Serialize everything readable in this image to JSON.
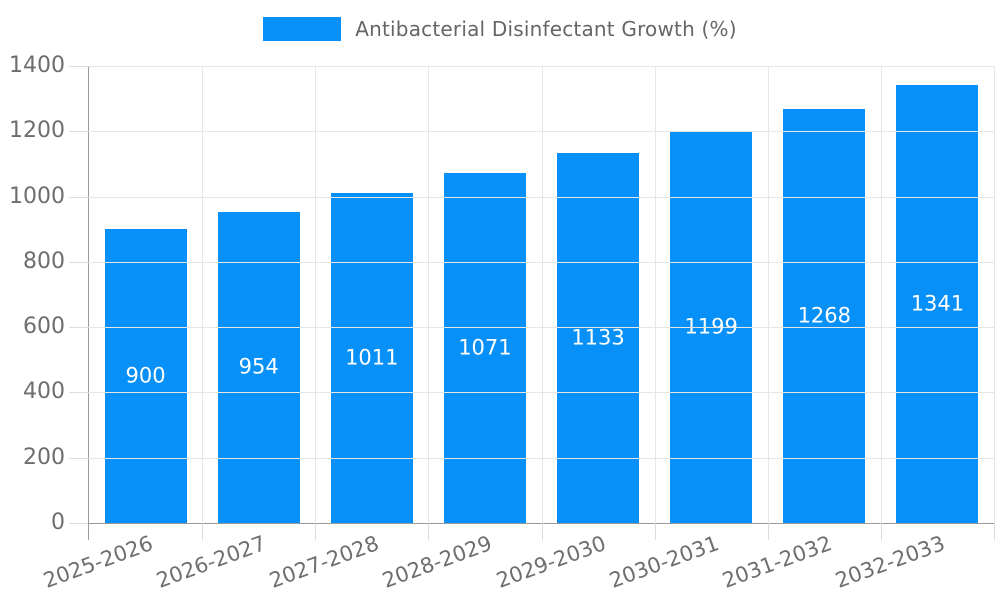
{
  "chart_data": {
    "type": "bar",
    "title": "Antibacterial Disinfectant Growth (%)",
    "categories": [
      "2025-2026",
      "2026-2027",
      "2027-2028",
      "2028-2029",
      "2029-2030",
      "2030-2031",
      "2031-2032",
      "2032-2033"
    ],
    "values": [
      900,
      954,
      1011,
      1071,
      1133,
      1199,
      1268,
      1341
    ],
    "xlabel": "",
    "ylabel": "",
    "ylim": [
      0,
      1400
    ],
    "yticks": [
      0,
      200,
      400,
      600,
      800,
      1000,
      1200,
      1400
    ],
    "grid": true,
    "legend_position": "top-center",
    "legend_label": "Antibacterial Disinfectant Growth (%)",
    "bar_color": "#0790f8",
    "value_label_color": "#ffffff",
    "axis_text_color": "#6e6e6e"
  }
}
